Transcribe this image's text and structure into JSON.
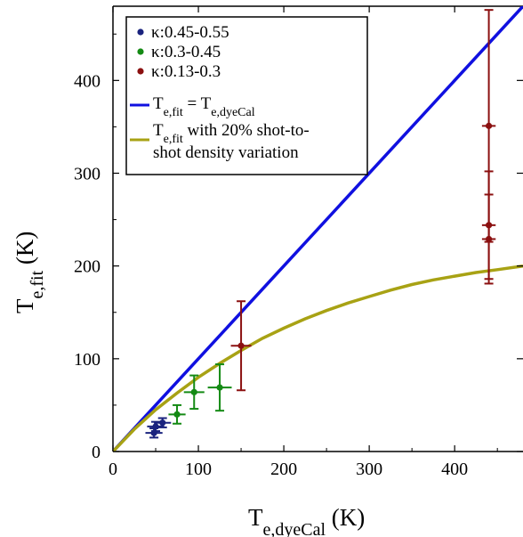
{
  "chart_data": {
    "type": "scatter",
    "xlabel": {
      "base": "T",
      "sub": "e,dyeCal",
      "unit": " (K)"
    },
    "ylabel": {
      "base": "T",
      "sub": "e,fit",
      "unit": " (K)"
    },
    "xlim": [
      0,
      480
    ],
    "ylim": [
      0,
      480
    ],
    "xticks": [
      0,
      100,
      200,
      300,
      400
    ],
    "yticks": [
      0,
      100,
      200,
      300,
      400
    ],
    "grid": false,
    "legend_position": "top-left",
    "series": [
      {
        "name": "κ:0.45-0.55",
        "color": "#1a237e",
        "points": [
          {
            "x": 48,
            "y": 20,
            "xerr": 10,
            "yerr": 5
          },
          {
            "x": 50,
            "y": 27,
            "xerr": 10,
            "yerr": 5
          },
          {
            "x": 58,
            "y": 31,
            "xerr": 10,
            "yerr": 5
          }
        ]
      },
      {
        "name": "κ:0.3-0.45",
        "color": "#148a14",
        "points": [
          {
            "x": 75,
            "y": 40,
            "xerr": 10,
            "yerr": 10
          },
          {
            "x": 95,
            "y": 64,
            "xerr": 12,
            "yerr": 18
          },
          {
            "x": 125,
            "y": 69,
            "xerr": 14,
            "yerr": 25
          }
        ]
      },
      {
        "name": "κ:0.13-0.3",
        "color": "#8b1010",
        "points": [
          {
            "x": 150,
            "y": 114,
            "xerr": 12,
            "yerr": 48
          },
          {
            "x": 440,
            "y": 229,
            "xerr": 8,
            "yerr": 48
          },
          {
            "x": 440,
            "y": 244,
            "xerr": 8,
            "yerr": 58
          },
          {
            "x": 440,
            "y": 351,
            "xerr": 8,
            "yerr": 125
          }
        ]
      }
    ],
    "lines": [
      {
        "name": "T_e,fit = T_e,dyeCal",
        "label_parts": [
          [
            "T",
            false
          ],
          [
            "e,fit",
            true
          ],
          [
            " = T",
            false
          ],
          [
            "e,dyeCal",
            true
          ]
        ],
        "color": "#1010e0",
        "x": [
          0,
          480
        ],
        "y": [
          0,
          480
        ]
      },
      {
        "name": "T_e,fit with 20% shot-to-shot density variation",
        "label_parts": [
          [
            "T",
            false
          ],
          [
            "e,fit",
            true
          ],
          [
            " with 20% shot-to-",
            false
          ]
        ],
        "label_line2": "shot density variation",
        "color": "#a8a214",
        "x": [
          0,
          25,
          50,
          75,
          100,
          125,
          150,
          175,
          200,
          225,
          250,
          275,
          300,
          325,
          350,
          375,
          400,
          425,
          450,
          480
        ],
        "y": [
          0,
          24,
          45,
          63,
          80,
          95,
          109,
          122,
          133,
          143,
          152,
          160,
          167,
          174,
          180,
          185,
          189,
          193,
          196,
          200
        ]
      }
    ]
  }
}
